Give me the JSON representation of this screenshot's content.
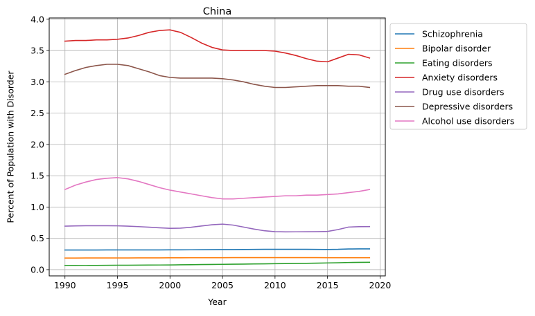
{
  "chart_data": {
    "type": "line",
    "title": "China",
    "xlabel": "Year",
    "ylabel": "Percent of Population with Disorder",
    "xlim": [
      1988.5,
      2020.5
    ],
    "ylim": [
      -0.1,
      4.02
    ],
    "xticks": [
      1990,
      1995,
      2000,
      2005,
      2010,
      2015,
      2020
    ],
    "xtick_labels": [
      "1990",
      "1995",
      "2000",
      "2005",
      "2010",
      "2015",
      "2020"
    ],
    "yticks": [
      0.0,
      0.5,
      1.0,
      1.5,
      2.0,
      2.5,
      3.0,
      3.5,
      4.0
    ],
    "ytick_labels": [
      "0.0",
      "0.5",
      "1.0",
      "1.5",
      "2.0",
      "2.5",
      "3.0",
      "3.5",
      "4.0"
    ],
    "grid": true,
    "legend_position": "outside-right-top",
    "x": [
      1990,
      1991,
      1992,
      1993,
      1994,
      1995,
      1996,
      1997,
      1998,
      1999,
      2000,
      2001,
      2002,
      2003,
      2004,
      2005,
      2006,
      2007,
      2008,
      2009,
      2010,
      2011,
      2012,
      2013,
      2014,
      2015,
      2016,
      2017,
      2018,
      2019
    ],
    "series": [
      {
        "name": "Schizophrenia",
        "color": "#1f77b4",
        "values": [
          0.313,
          0.313,
          0.314,
          0.314,
          0.315,
          0.315,
          0.315,
          0.315,
          0.315,
          0.315,
          0.316,
          0.316,
          0.317,
          0.318,
          0.319,
          0.32,
          0.321,
          0.322,
          0.323,
          0.324,
          0.325,
          0.325,
          0.325,
          0.324,
          0.323,
          0.322,
          0.324,
          0.33,
          0.331,
          0.331
        ]
      },
      {
        "name": "Bipolar disorder",
        "color": "#ff7f0e",
        "values": [
          0.185,
          0.185,
          0.186,
          0.186,
          0.187,
          0.187,
          0.187,
          0.188,
          0.188,
          0.188,
          0.189,
          0.189,
          0.19,
          0.19,
          0.191,
          0.191,
          0.192,
          0.192,
          0.192,
          0.192,
          0.192,
          0.192,
          0.192,
          0.192,
          0.192,
          0.191,
          0.191,
          0.191,
          0.191,
          0.191
        ]
      },
      {
        "name": "Eating disorders",
        "color": "#2ca02c",
        "values": [
          0.065,
          0.066,
          0.067,
          0.068,
          0.069,
          0.07,
          0.071,
          0.072,
          0.073,
          0.074,
          0.075,
          0.077,
          0.079,
          0.081,
          0.083,
          0.085,
          0.087,
          0.089,
          0.091,
          0.093,
          0.095,
          0.097,
          0.099,
          0.101,
          0.104,
          0.107,
          0.11,
          0.114,
          0.116,
          0.117
        ]
      },
      {
        "name": "Anxiety disorders",
        "color": "#d62728",
        "values": [
          3.65,
          3.66,
          3.66,
          3.67,
          3.67,
          3.68,
          3.7,
          3.74,
          3.79,
          3.82,
          3.83,
          3.79,
          3.71,
          3.62,
          3.55,
          3.51,
          3.5,
          3.5,
          3.5,
          3.5,
          3.49,
          3.46,
          3.42,
          3.37,
          3.33,
          3.32,
          3.38,
          3.44,
          3.43,
          3.38
        ]
      },
      {
        "name": "Drug use disorders",
        "color": "#9467bd",
        "values": [
          0.695,
          0.699,
          0.701,
          0.702,
          0.701,
          0.7,
          0.695,
          0.687,
          0.678,
          0.668,
          0.66,
          0.663,
          0.677,
          0.697,
          0.717,
          0.727,
          0.712,
          0.68,
          0.648,
          0.621,
          0.606,
          0.603,
          0.604,
          0.605,
          0.606,
          0.61,
          0.64,
          0.68,
          0.686,
          0.688
        ]
      },
      {
        "name": "Depressive disorders",
        "color": "#8c564b",
        "values": [
          3.12,
          3.18,
          3.23,
          3.26,
          3.28,
          3.28,
          3.26,
          3.21,
          3.16,
          3.1,
          3.07,
          3.06,
          3.06,
          3.06,
          3.06,
          3.05,
          3.03,
          3.0,
          2.96,
          2.93,
          2.91,
          2.91,
          2.92,
          2.93,
          2.94,
          2.94,
          2.94,
          2.93,
          2.93,
          2.91
        ]
      },
      {
        "name": "Alcohol use disorders",
        "color": "#e377c2",
        "values": [
          1.28,
          1.35,
          1.4,
          1.44,
          1.46,
          1.47,
          1.45,
          1.41,
          1.36,
          1.31,
          1.27,
          1.24,
          1.21,
          1.18,
          1.15,
          1.13,
          1.13,
          1.14,
          1.15,
          1.16,
          1.17,
          1.18,
          1.18,
          1.19,
          1.19,
          1.2,
          1.21,
          1.23,
          1.25,
          1.28
        ]
      }
    ]
  }
}
